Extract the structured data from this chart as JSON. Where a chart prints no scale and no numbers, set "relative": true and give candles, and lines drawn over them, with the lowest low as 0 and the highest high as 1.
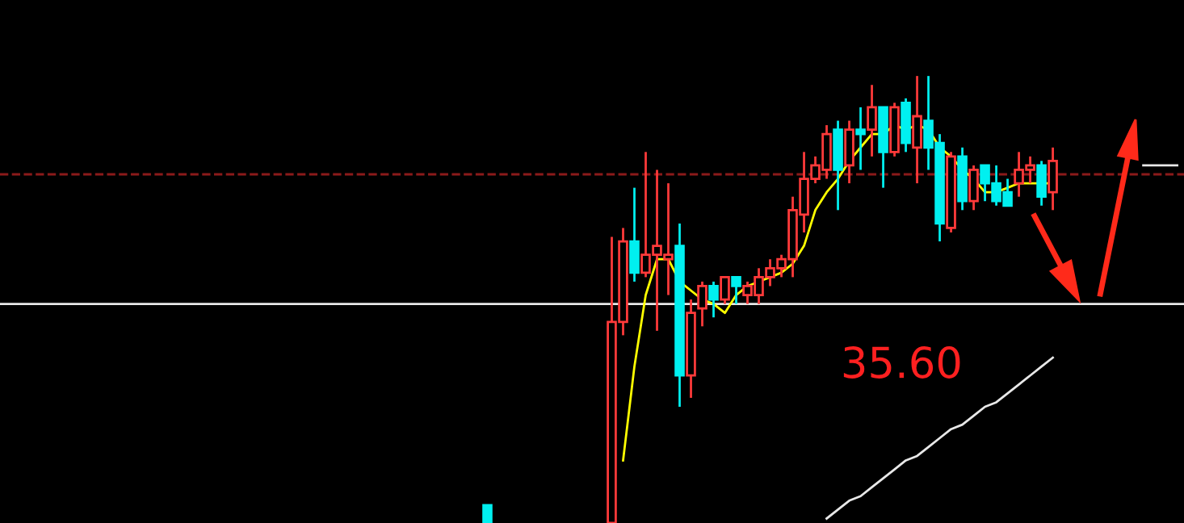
{
  "chart_data": {
    "type": "candlestick",
    "relative": true,
    "categories": [
      null,
      null,
      null,
      null,
      null,
      null,
      null,
      null,
      null,
      null,
      null,
      null,
      null,
      null,
      null,
      null,
      null,
      null,
      null,
      null,
      null,
      null,
      null,
      null,
      null,
      null,
      null,
      null,
      null,
      null,
      null,
      null,
      null,
      null,
      null,
      null,
      null,
      null,
      null,
      null,
      null,
      null,
      null,
      null,
      null,
      null,
      null,
      null,
      null,
      null,
      null,
      null,
      null,
      null,
      null,
      null,
      null,
      null,
      null,
      null,
      null,
      null
    ],
    "ohlc": [
      [
        0.04,
        0.04,
        0,
        0
      ],
      null,
      null,
      null,
      null,
      null,
      null,
      null,
      null,
      null,
      null,
      [
        0,
        0.64,
        0,
        0.45
      ],
      [
        0.45,
        0.66,
        0.42,
        0.63
      ],
      [
        0.63,
        0.75,
        0.54,
        0.56
      ],
      [
        0.56,
        0.83,
        0.55,
        0.6
      ],
      [
        0.6,
        0.79,
        0.43,
        0.62
      ],
      [
        0.59,
        0.76,
        0.51,
        0.6
      ],
      [
        0.62,
        0.67,
        0.26,
        0.33
      ],
      [
        0.33,
        0.5,
        0.28,
        0.47
      ],
      [
        0.48,
        0.54,
        0.44,
        0.53
      ],
      [
        0.53,
        0.54,
        0.46,
        0.5
      ],
      [
        0.5,
        0.55,
        0.49,
        0.55
      ],
      [
        0.55,
        0.55,
        0.49,
        0.53
      ],
      [
        0.51,
        0.54,
        0.49,
        0.53
      ],
      [
        0.51,
        0.57,
        0.49,
        0.55
      ],
      [
        0.55,
        0.59,
        0.53,
        0.57
      ],
      [
        0.57,
        0.6,
        0.55,
        0.59
      ],
      [
        0.59,
        0.73,
        0.55,
        0.7
      ],
      [
        0.69,
        0.83,
        0.65,
        0.77
      ],
      [
        0.77,
        0.82,
        0.76,
        0.8
      ],
      [
        0.79,
        0.89,
        0.77,
        0.87
      ],
      [
        0.88,
        0.9,
        0.7,
        0.79
      ],
      [
        0.8,
        0.9,
        0.76,
        0.88
      ],
      [
        0.88,
        0.93,
        0.79,
        0.87
      ],
      [
        0.88,
        0.98,
        0.82,
        0.93
      ],
      [
        0.93,
        0.93,
        0.75,
        0.83
      ],
      [
        0.83,
        0.94,
        0.82,
        0.93
      ],
      [
        0.94,
        0.95,
        0.83,
        0.85
      ],
      [
        0.84,
        1.0,
        0.76,
        0.91
      ],
      [
        0.9,
        1.0,
        0.79,
        0.84
      ],
      [
        0.85,
        0.87,
        0.63,
        0.67
      ],
      [
        0.66,
        0.83,
        0.65,
        0.82
      ],
      [
        0.82,
        0.84,
        0.7,
        0.72
      ],
      [
        0.72,
        0.8,
        0.7,
        0.79
      ],
      [
        0.8,
        0.8,
        0.72,
        0.76
      ],
      [
        0.76,
        0.8,
        0.71,
        0.72
      ],
      [
        0.74,
        0.77,
        0.71,
        0.71
      ],
      [
        0.76,
        0.83,
        0.73,
        0.79
      ],
      [
        0.79,
        0.82,
        0.76,
        0.8
      ],
      [
        0.8,
        0.81,
        0.71,
        0.73
      ],
      [
        0.74,
        0.84,
        0.7,
        0.81
      ],
      null,
      null,
      null,
      null,
      null,
      null,
      null,
      null,
      null,
      null,
      null
    ],
    "series": [
      {
        "type": "line",
        "color": "#ffff00",
        "values": [
          null,
          null,
          null,
          null,
          null,
          null,
          null,
          null,
          null,
          null,
          null,
          null,
          0.14,
          0.35,
          0.51,
          0.59,
          0.59,
          0.54,
          0.52,
          0.5,
          0.49,
          0.47,
          0.51,
          0.53,
          0.54,
          0.55,
          0.56,
          0.58,
          0.62,
          0.7,
          0.74,
          0.77,
          0.81,
          0.84,
          0.87,
          0.87,
          0.89,
          0.88,
          0.89,
          0.88,
          0.84,
          0.82,
          0.79,
          0.77,
          0.74,
          0.74,
          0.75,
          0.76,
          0.76,
          0.76,
          0.76,
          null,
          null,
          null,
          null,
          null,
          null,
          null,
          null,
          null,
          null,
          null
        ]
      },
      {
        "type": "line",
        "color": "#e8e8e8",
        "values": [
          null,
          null,
          null,
          null,
          null,
          null,
          null,
          null,
          null,
          null,
          null,
          null,
          null,
          null,
          null,
          null,
          null,
          null,
          null,
          null,
          null,
          null,
          null,
          null,
          null,
          null,
          null,
          null,
          null,
          null,
          0.01,
          0.03,
          0.05,
          0.06,
          0.08,
          0.1,
          0.12,
          0.14,
          0.15,
          0.17,
          0.19,
          0.21,
          0.22,
          0.24,
          0.26,
          0.27,
          0.29,
          0.31,
          0.33,
          0.35,
          0.37,
          null,
          null,
          null,
          null,
          null,
          null,
          null,
          null,
          null,
          null,
          null
        ]
      },
      {
        "type": "line",
        "color": "#e8e8e8",
        "values": [
          null,
          null,
          null,
          null,
          null,
          null,
          null,
          null,
          null,
          null,
          null,
          null,
          null,
          null,
          null,
          null,
          null,
          null,
          null,
          null,
          null,
          null,
          null,
          null,
          null,
          null,
          null,
          null,
          null,
          null,
          null,
          null,
          null,
          null,
          null,
          null,
          null,
          null,
          null,
          null,
          null,
          null,
          null,
          null,
          null,
          null,
          null,
          null,
          null,
          null,
          null,
          null,
          null,
          null,
          null,
          null,
          null,
          null,
          0.8,
          0.8,
          0.8,
          0.8
        ]
      }
    ],
    "ref_lines": [
      {
        "axis": "y",
        "value": 0.49,
        "color": "#e8e8e8",
        "line_style": "solid"
      },
      {
        "axis": "y",
        "value": 0.78,
        "color": "#8b1a1a",
        "line_style": "dashed"
      }
    ],
    "annotations": [
      "35.60"
    ]
  }
}
